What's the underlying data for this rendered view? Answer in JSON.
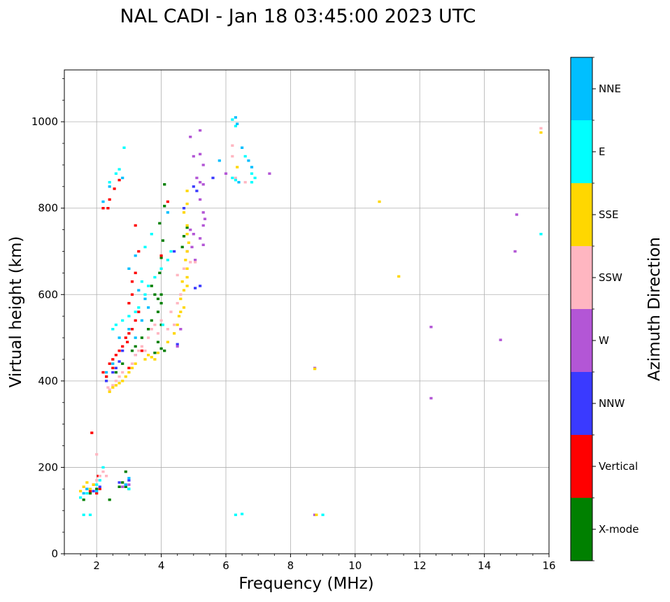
{
  "chart_data": {
    "type": "scatter",
    "title": "NAL CADI - Jan 18 03:45:00 2023 UTC",
    "xlabel": "Frequency (MHz)",
    "ylabel": "Virtual height (km)",
    "xlim": [
      1.0,
      16.0
    ],
    "ylim": [
      0,
      1120
    ],
    "grid": true,
    "x_ticks": [
      2,
      4,
      6,
      8,
      10,
      12,
      14,
      16
    ],
    "y_ticks": [
      0,
      200,
      400,
      600,
      800,
      1000
    ],
    "colorbar": {
      "label": "Azimuth Direction",
      "categories": [
        {
          "name": "X-mode",
          "color": "#008000"
        },
        {
          "name": "Vertical",
          "color": "#ff0000"
        },
        {
          "name": "NNW",
          "color": "#3a3aff"
        },
        {
          "name": "W",
          "color": "#b356d6"
        },
        {
          "name": "SSW",
          "color": "#ffb6c1"
        },
        {
          "name": "SSE",
          "color": "#ffd700"
        },
        {
          "name": "E",
          "color": "#00ffff"
        },
        {
          "name": "NNE",
          "color": "#00bfff"
        }
      ]
    },
    "series": [
      {
        "name": "X-mode",
        "points": [
          [
            1.6,
            125
          ],
          [
            1.8,
            140
          ],
          [
            2.0,
            150
          ],
          [
            2.4,
            125
          ],
          [
            2.7,
            155
          ],
          [
            2.8,
            165
          ],
          [
            2.9,
            155
          ],
          [
            3.0,
            150
          ],
          [
            2.9,
            190
          ],
          [
            2.3,
            410
          ],
          [
            2.6,
            420
          ],
          [
            2.8,
            440
          ],
          [
            3.1,
            470
          ],
          [
            3.2,
            480
          ],
          [
            3.4,
            500
          ],
          [
            3.6,
            520
          ],
          [
            3.7,
            540
          ],
          [
            3.9,
            560
          ],
          [
            4.0,
            580
          ],
          [
            4.0,
            600
          ],
          [
            3.8,
            465
          ],
          [
            4.0,
            475
          ],
          [
            4.1,
            470
          ],
          [
            3.9,
            490
          ],
          [
            4.0,
            530
          ],
          [
            3.95,
            650
          ],
          [
            4.0,
            685
          ],
          [
            4.05,
            725
          ],
          [
            3.95,
            765
          ],
          [
            4.1,
            805
          ],
          [
            4.1,
            855
          ],
          [
            4.7,
            735
          ],
          [
            4.65,
            710
          ],
          [
            4.8,
            755
          ],
          [
            3.7,
            620
          ],
          [
            3.8,
            600
          ],
          [
            3.9,
            590
          ]
        ]
      },
      {
        "name": "Vertical",
        "points": [
          [
            1.7,
            150
          ],
          [
            1.8,
            145
          ],
          [
            1.9,
            160
          ],
          [
            2.0,
            140
          ],
          [
            2.1,
            150
          ],
          [
            2.05,
            180
          ],
          [
            1.85,
            280
          ],
          [
            2.2,
            420
          ],
          [
            2.3,
            410
          ],
          [
            2.4,
            440
          ],
          [
            2.5,
            450
          ],
          [
            2.6,
            460
          ],
          [
            2.7,
            470
          ],
          [
            2.8,
            480
          ],
          [
            2.9,
            500
          ],
          [
            3.0,
            510
          ],
          [
            3.1,
            520
          ],
          [
            3.2,
            540
          ],
          [
            3.0,
            580
          ],
          [
            3.1,
            630
          ],
          [
            3.2,
            650
          ],
          [
            3.3,
            700
          ],
          [
            3.2,
            760
          ],
          [
            2.2,
            800
          ],
          [
            2.35,
            800
          ],
          [
            2.4,
            820
          ],
          [
            2.55,
            845
          ],
          [
            2.7,
            865
          ],
          [
            3.0,
            430
          ],
          [
            2.95,
            490
          ],
          [
            3.3,
            560
          ],
          [
            3.1,
            600
          ],
          [
            4.2,
            815
          ],
          [
            4.0,
            690
          ],
          [
            2.5,
            430
          ],
          [
            3.4,
            470
          ]
        ]
      },
      {
        "name": "NNW",
        "points": [
          [
            1.9,
            145
          ],
          [
            2.1,
            155
          ],
          [
            2.9,
            160
          ],
          [
            3.0,
            170
          ],
          [
            2.7,
            165
          ],
          [
            2.5,
            420
          ],
          [
            2.6,
            430
          ],
          [
            2.3,
            400
          ],
          [
            2.7,
            445
          ],
          [
            4.4,
            700
          ],
          [
            4.7,
            800
          ],
          [
            5.0,
            850
          ],
          [
            5.1,
            840
          ],
          [
            5.2,
            620
          ],
          [
            5.05,
            615
          ],
          [
            4.5,
            485
          ],
          [
            5.6,
            870
          ],
          [
            3.2,
            460
          ],
          [
            2.8,
            470
          ]
        ]
      },
      {
        "name": "W",
        "points": [
          [
            2.8,
            155
          ],
          [
            3.0,
            160
          ],
          [
            4.5,
            480
          ],
          [
            4.9,
            965
          ],
          [
            5.2,
            980
          ],
          [
            5.0,
            920
          ],
          [
            5.2,
            925
          ],
          [
            5.3,
            900
          ],
          [
            5.1,
            870
          ],
          [
            5.2,
            860
          ],
          [
            5.3,
            855
          ],
          [
            5.2,
            820
          ],
          [
            5.3,
            790
          ],
          [
            5.35,
            775
          ],
          [
            5.3,
            760
          ],
          [
            5.2,
            730
          ],
          [
            5.3,
            715
          ],
          [
            5.0,
            740
          ],
          [
            5.05,
            680
          ],
          [
            4.9,
            750
          ],
          [
            4.95,
            710
          ],
          [
            4.8,
            700
          ],
          [
            4.6,
            520
          ],
          [
            7.35,
            880
          ],
          [
            8.75,
            430
          ],
          [
            8.75,
            90
          ],
          [
            12.35,
            360
          ],
          [
            12.35,
            525
          ],
          [
            14.5,
            495
          ],
          [
            14.95,
            700
          ],
          [
            15.0,
            785
          ],
          [
            6.0,
            880
          ]
        ]
      },
      {
        "name": "SSW",
        "points": [
          [
            2.0,
            170
          ],
          [
            2.1,
            180
          ],
          [
            2.2,
            190
          ],
          [
            2.3,
            180
          ],
          [
            2.0,
            230
          ],
          [
            2.4,
            380
          ],
          [
            2.5,
            390
          ],
          [
            2.6,
            400
          ],
          [
            2.7,
            410
          ],
          [
            2.8,
            420
          ],
          [
            3.1,
            440
          ],
          [
            3.2,
            460
          ],
          [
            3.3,
            470
          ],
          [
            3.4,
            480
          ],
          [
            3.6,
            500
          ],
          [
            3.7,
            520
          ],
          [
            3.8,
            530
          ],
          [
            4.0,
            540
          ],
          [
            4.2,
            520
          ],
          [
            4.3,
            560
          ],
          [
            4.5,
            580
          ],
          [
            4.6,
            600
          ],
          [
            4.5,
            645
          ],
          [
            4.7,
            660
          ],
          [
            4.9,
            675
          ],
          [
            4.8,
            700
          ],
          [
            5.05,
            675
          ],
          [
            6.2,
            945
          ],
          [
            6.2,
            920
          ],
          [
            6.3,
            870
          ],
          [
            6.6,
            860
          ],
          [
            15.75,
            985
          ],
          [
            2.35,
            385
          ],
          [
            4.4,
            530
          ],
          [
            3.5,
            470
          ],
          [
            3.9,
            510
          ]
        ]
      },
      {
        "name": "SSE",
        "points": [
          [
            1.5,
            145
          ],
          [
            1.6,
            155
          ],
          [
            1.7,
            165
          ],
          [
            1.8,
            150
          ],
          [
            1.9,
            160
          ],
          [
            2.4,
            375
          ],
          [
            2.5,
            385
          ],
          [
            2.6,
            390
          ],
          [
            2.7,
            395
          ],
          [
            2.8,
            400
          ],
          [
            2.9,
            410
          ],
          [
            3.0,
            420
          ],
          [
            3.1,
            430
          ],
          [
            3.2,
            440
          ],
          [
            3.5,
            450
          ],
          [
            3.6,
            460
          ],
          [
            3.7,
            455
          ],
          [
            3.8,
            450
          ],
          [
            3.9,
            465
          ],
          [
            4.2,
            490
          ],
          [
            4.4,
            510
          ],
          [
            4.5,
            530
          ],
          [
            4.55,
            550
          ],
          [
            4.6,
            560
          ],
          [
            4.7,
            570
          ],
          [
            4.6,
            590
          ],
          [
            4.7,
            610
          ],
          [
            4.65,
            630
          ],
          [
            4.8,
            620
          ],
          [
            4.8,
            640
          ],
          [
            4.8,
            660
          ],
          [
            4.75,
            680
          ],
          [
            4.8,
            700
          ],
          [
            4.85,
            720
          ],
          [
            4.8,
            740
          ],
          [
            4.8,
            760
          ],
          [
            4.7,
            790
          ],
          [
            4.8,
            810
          ],
          [
            4.8,
            840
          ],
          [
            6.35,
            895
          ],
          [
            8.8,
            90
          ],
          [
            8.75,
            428
          ],
          [
            10.75,
            815
          ],
          [
            11.35,
            642
          ],
          [
            15.75,
            975
          ]
        ]
      },
      {
        "name": "E",
        "points": [
          [
            1.5,
            130
          ],
          [
            1.6,
            90
          ],
          [
            1.8,
            90
          ],
          [
            1.7,
            140
          ],
          [
            2.0,
            160
          ],
          [
            2.1,
            170
          ],
          [
            2.2,
            200
          ],
          [
            2.85,
            940
          ],
          [
            3.0,
            150
          ],
          [
            2.5,
            520
          ],
          [
            2.6,
            530
          ],
          [
            2.8,
            540
          ],
          [
            3.0,
            550
          ],
          [
            3.2,
            560
          ],
          [
            3.3,
            570
          ],
          [
            3.5,
            600
          ],
          [
            3.6,
            620
          ],
          [
            3.8,
            640
          ],
          [
            4.0,
            660
          ],
          [
            4.2,
            680
          ],
          [
            4.3,
            700
          ],
          [
            3.7,
            740
          ],
          [
            3.5,
            710
          ],
          [
            2.6,
            880
          ],
          [
            2.7,
            890
          ],
          [
            6.2,
            1005
          ],
          [
            6.3,
            990
          ],
          [
            6.2,
            870
          ],
          [
            6.3,
            865
          ],
          [
            6.6,
            920
          ],
          [
            6.8,
            880
          ],
          [
            6.9,
            870
          ],
          [
            6.8,
            860
          ],
          [
            6.3,
            90
          ],
          [
            6.5,
            92
          ],
          [
            9.0,
            90
          ],
          [
            15.75,
            740
          ],
          [
            2.4,
            860
          ],
          [
            3.4,
            630
          ],
          [
            4.05,
            530
          ]
        ]
      },
      {
        "name": "NNE",
        "points": [
          [
            1.6,
            140
          ],
          [
            1.7,
            150
          ],
          [
            2.0,
            145
          ],
          [
            2.9,
            160
          ],
          [
            3.0,
            175
          ],
          [
            2.3,
            420
          ],
          [
            2.5,
            440
          ],
          [
            2.7,
            500
          ],
          [
            3.0,
            520
          ],
          [
            3.2,
            500
          ],
          [
            3.4,
            540
          ],
          [
            3.6,
            570
          ],
          [
            3.3,
            610
          ],
          [
            3.0,
            660
          ],
          [
            3.2,
            690
          ],
          [
            2.2,
            815
          ],
          [
            2.8,
            870
          ],
          [
            2.4,
            850
          ],
          [
            5.8,
            910
          ],
          [
            6.3,
            1010
          ],
          [
            6.35,
            995
          ],
          [
            6.5,
            940
          ],
          [
            6.4,
            860
          ],
          [
            6.7,
            910
          ],
          [
            6.8,
            895
          ],
          [
            4.2,
            790
          ],
          [
            3.5,
            590
          ]
        ]
      }
    ]
  }
}
